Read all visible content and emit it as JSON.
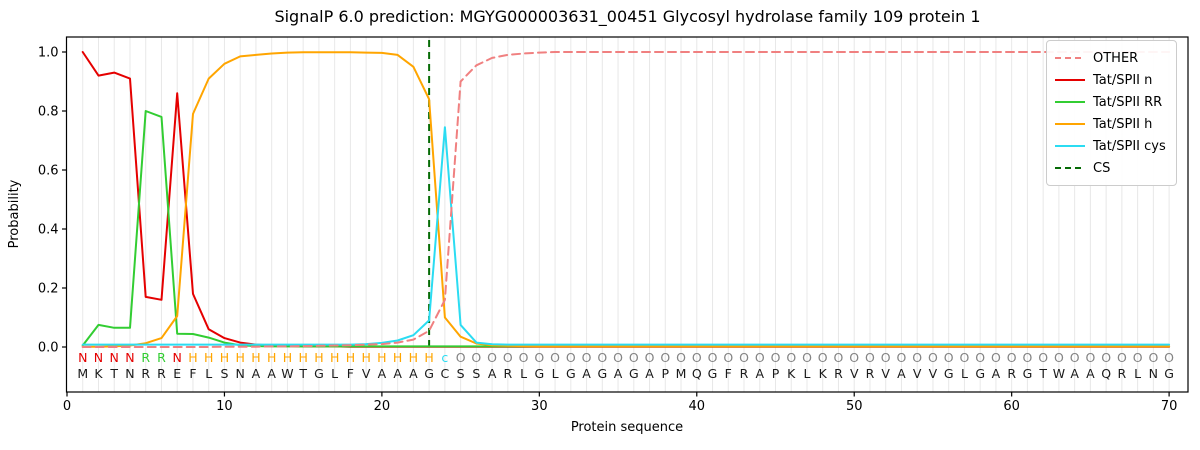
{
  "chart_data": {
    "type": "line",
    "title": "SignalP 6.0 prediction: MGYG000003631_00451 Glycosyl hydrolase family 109 protein 1",
    "xlabel": "Protein sequence",
    "ylabel": "Probability",
    "xlim": [
      0,
      71.2
    ],
    "ylim": [
      -0.153,
      1.051
    ],
    "xticks": [
      0,
      10,
      20,
      30,
      40,
      50,
      60,
      70
    ],
    "ytick_labels": [
      "0.0",
      "0.2",
      "0.4",
      "0.6",
      "0.8",
      "1.0"
    ],
    "ytick_values": [
      0.0,
      0.2,
      0.4,
      0.6,
      0.8,
      1.0
    ],
    "grid": "vertical line at every residue position 1-70",
    "gridline_color": "#e8e8e8",
    "legend_position": "upper right",
    "x_start": 1,
    "series": [
      {
        "name": "OTHER",
        "color": "#f08080",
        "dashed": true,
        "values": [
          0,
          0,
          0,
          0,
          0,
          0,
          0,
          0,
          0,
          0.001,
          0.001,
          0.001,
          0.002,
          0.002,
          0.003,
          0.004,
          0.005,
          0.006,
          0.008,
          0.01,
          0.015,
          0.025,
          0.055,
          0.16,
          0.9,
          0.955,
          0.98,
          0.99,
          0.995,
          0.998,
          1.0,
          1.0,
          1.0,
          1.0,
          1.0,
          1.0,
          1.0,
          1.0,
          1.0,
          1.0,
          1.0,
          1.0,
          1.0,
          1.0,
          1.0,
          1.0,
          1.0,
          1.0,
          1.0,
          1.0,
          1.0,
          1.0,
          1.0,
          1.0,
          1.0,
          1.0,
          1.0,
          1.0,
          1.0,
          1.0,
          1.0,
          1.0,
          1.0,
          1.0,
          1.0,
          1.0,
          1.0,
          1.0,
          1.0,
          1.0
        ]
      },
      {
        "name": "Tat/SPII n",
        "color": "#e50000",
        "dashed": false,
        "values": [
          1.0,
          0.92,
          0.93,
          0.91,
          0.17,
          0.16,
          0.86,
          0.18,
          0.06,
          0.03,
          0.015,
          0.008,
          0.005,
          0.003,
          0.002,
          0.002,
          0.002,
          0.001,
          0.001,
          0.001,
          0.001,
          0.001,
          0.001,
          0.001,
          0.001,
          0.001,
          0.001,
          0.001,
          0.001,
          0.001,
          0.001,
          0.001,
          0.001,
          0.001,
          0.001,
          0.001,
          0.001,
          0.001,
          0.001,
          0.001,
          0.001,
          0.001,
          0.001,
          0.001,
          0.001,
          0.001,
          0.001,
          0.001,
          0.001,
          0.001,
          0.001,
          0.001,
          0.001,
          0.001,
          0.001,
          0.001,
          0.001,
          0.001,
          0.001,
          0.001,
          0.001,
          0.001,
          0.001,
          0.001,
          0.001,
          0.001,
          0.001,
          0.001,
          0.001,
          0.001
        ]
      },
      {
        "name": "Tat/SPII RR",
        "color": "#32cd32",
        "dashed": false,
        "values": [
          0.005,
          0.075,
          0.065,
          0.065,
          0.8,
          0.78,
          0.045,
          0.044,
          0.032,
          0.015,
          0.006,
          0.003,
          0.002,
          0.002,
          0.002,
          0.002,
          0.002,
          0.002,
          0.002,
          0.002,
          0.002,
          0.002,
          0.002,
          0.002,
          0.002,
          0.002,
          0.002,
          0.002,
          0.002,
          0.002,
          0.002,
          0.002,
          0.002,
          0.002,
          0.002,
          0.002,
          0.002,
          0.002,
          0.002,
          0.002,
          0.002,
          0.002,
          0.002,
          0.002,
          0.002,
          0.002,
          0.002,
          0.002,
          0.002,
          0.002,
          0.002,
          0.002,
          0.002,
          0.002,
          0.002,
          0.002,
          0.002,
          0.002,
          0.002,
          0.002,
          0.002,
          0.002,
          0.002,
          0.002,
          0.002,
          0.002,
          0.002,
          0.002,
          0.002,
          0.002
        ]
      },
      {
        "name": "Tat/SPII h",
        "color": "#ffa500",
        "dashed": false,
        "values": [
          0.001,
          0.001,
          0.002,
          0.005,
          0.013,
          0.03,
          0.105,
          0.79,
          0.91,
          0.96,
          0.985,
          0.99,
          0.995,
          0.998,
          0.999,
          0.999,
          0.999,
          0.999,
          0.998,
          0.997,
          0.99,
          0.95,
          0.84,
          0.1,
          0.035,
          0.012,
          0.006,
          0.004,
          0.003,
          0.002,
          0.002,
          0.002,
          0.002,
          0.002,
          0.002,
          0.002,
          0.002,
          0.002,
          0.002,
          0.002,
          0.002,
          0.002,
          0.002,
          0.002,
          0.002,
          0.002,
          0.002,
          0.002,
          0.002,
          0.002,
          0.002,
          0.002,
          0.002,
          0.002,
          0.002,
          0.002,
          0.002,
          0.002,
          0.002,
          0.002,
          0.002,
          0.002,
          0.002,
          0.002,
          0.002,
          0.002,
          0.002,
          0.002,
          0.002,
          0.002
        ]
      },
      {
        "name": "Tat/SPII cys",
        "color": "#2bdcf2",
        "dashed": false,
        "values": [
          0.008,
          0.008,
          0.008,
          0.008,
          0.008,
          0.008,
          0.008,
          0.008,
          0.008,
          0.008,
          0.008,
          0.008,
          0.008,
          0.008,
          0.008,
          0.008,
          0.008,
          0.008,
          0.01,
          0.014,
          0.022,
          0.04,
          0.09,
          0.745,
          0.075,
          0.015,
          0.009,
          0.008,
          0.008,
          0.008,
          0.008,
          0.008,
          0.008,
          0.008,
          0.008,
          0.008,
          0.008,
          0.008,
          0.008,
          0.008,
          0.008,
          0.008,
          0.008,
          0.008,
          0.008,
          0.008,
          0.008,
          0.008,
          0.008,
          0.008,
          0.008,
          0.008,
          0.008,
          0.008,
          0.008,
          0.008,
          0.008,
          0.008,
          0.008,
          0.008,
          0.008,
          0.008,
          0.008,
          0.008,
          0.008,
          0.008,
          0.008,
          0.008,
          0.008,
          0.008
        ]
      }
    ],
    "cs_marker": {
      "name": "CS",
      "x": 23,
      "color": "#066b06",
      "dashed": true
    }
  },
  "sequence": {
    "residues": "MKTNRREFLSNAAWTGLFVAAAGCSSARLGLGAGAGAPMQGFRAPKLKRVRVAVVGLGARGTWAAQRLNG",
    "region_labels": "NNNNRRNHHHHHHHHHHHHHHHHcOOOOOOOOOOOOOOOOOOOOOOOOOOOOOOOOOOOOOOOOOOOOOO",
    "residue_color": "#1a1a1a",
    "region_colors": {
      "N": "#e50000",
      "R": "#32cd32",
      "H": "#ffa500",
      "c": "#2bdcf2",
      "O": "#848484"
    }
  },
  "legend": {
    "items": [
      {
        "label": "OTHER",
        "color": "#f08080",
        "dashed": true
      },
      {
        "label": "Tat/SPII n",
        "color": "#e50000",
        "dashed": false
      },
      {
        "label": "Tat/SPII RR",
        "color": "#32cd32",
        "dashed": false
      },
      {
        "label": "Tat/SPII h",
        "color": "#ffa500",
        "dashed": false
      },
      {
        "label": "Tat/SPII cys",
        "color": "#2bdcf2",
        "dashed": false
      },
      {
        "label": "CS",
        "color": "#066b06",
        "dashed": true
      }
    ]
  }
}
